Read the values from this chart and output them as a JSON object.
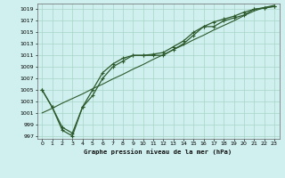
{
  "title": "Graphe pression niveau de la mer (hPa)",
  "bg_color": "#cff0ee",
  "grid_color": "#a8d5c8",
  "line_color": "#2d5a2d",
  "x_ticks": [
    0,
    1,
    2,
    3,
    4,
    5,
    6,
    7,
    8,
    9,
    10,
    11,
    12,
    13,
    14,
    15,
    16,
    17,
    18,
    19,
    20,
    21,
    22,
    23
  ],
  "y_ticks": [
    997,
    999,
    1001,
    1003,
    1005,
    1007,
    1009,
    1011,
    1013,
    1015,
    1017,
    1019
  ],
  "ylim": [
    996.5,
    1020.0
  ],
  "xlim": [
    -0.5,
    23.5
  ],
  "line_wiggly_y": [
    1005,
    1002,
    998,
    997,
    1002,
    1004,
    1007,
    1009,
    1010,
    1011,
    1011,
    1011,
    1011,
    1012,
    1013,
    1014.5,
    1016,
    1016,
    1017,
    1017.5,
    1018,
    1019,
    1019.2,
    1019.5
  ],
  "line_straight_y": [
    1001,
    1001.8,
    1002.7,
    1003.5,
    1004.3,
    1005.2,
    1006.0,
    1006.9,
    1007.7,
    1008.6,
    1009.4,
    1010.3,
    1011.1,
    1012.0,
    1012.8,
    1013.7,
    1014.5,
    1015.4,
    1016.2,
    1017.0,
    1017.9,
    1018.7,
    1019.3,
    1019.7
  ],
  "line_curved_y": [
    1005,
    1002,
    998.5,
    997.5,
    1002,
    1005,
    1008,
    1009.5,
    1010.5,
    1011,
    1011,
    1011.2,
    1011.5,
    1012.5,
    1013.5,
    1015,
    1016,
    1016.8,
    1017.3,
    1017.8,
    1018.5,
    1019,
    1019.3,
    1019.5
  ]
}
